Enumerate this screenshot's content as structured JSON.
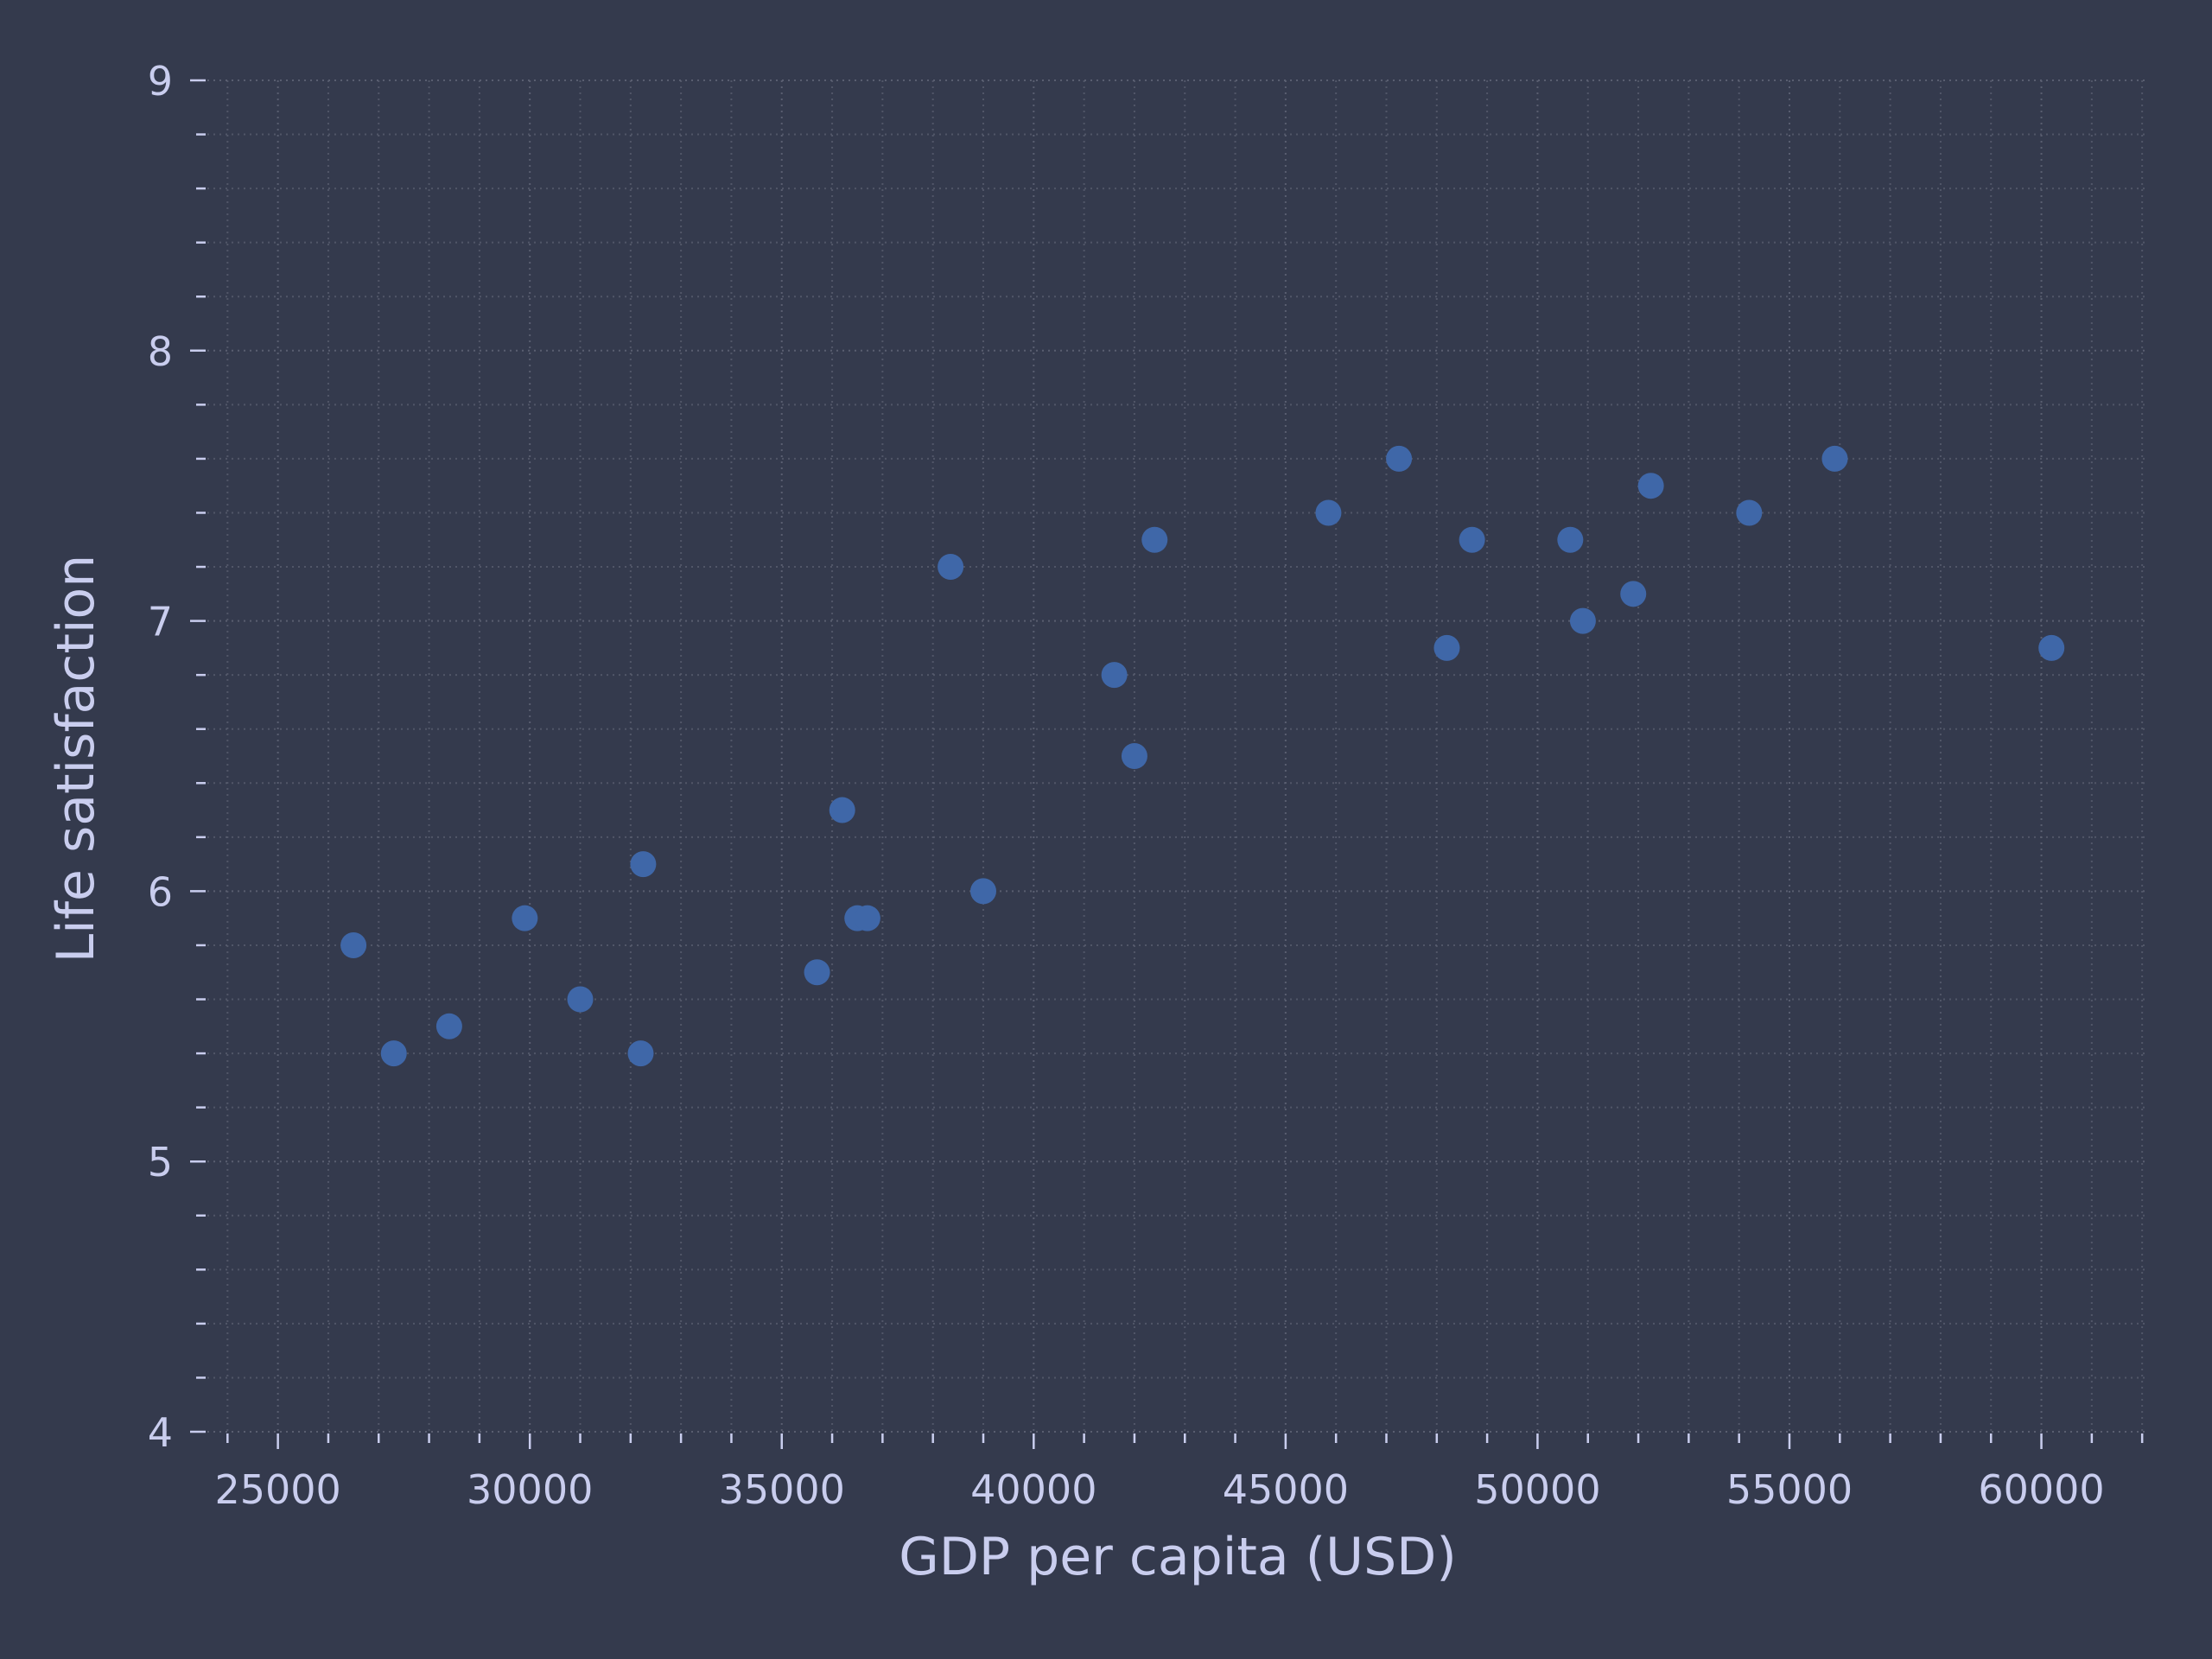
{
  "chart_data": {
    "type": "scatter",
    "title": "",
    "xlabel": "GDP per capita (USD)",
    "ylabel": "Life satisfaction",
    "xlim": [
      23600,
      62100
    ],
    "ylim": [
      4,
      9
    ],
    "x_ticks": [
      25000,
      30000,
      35000,
      40000,
      45000,
      50000,
      55000,
      60000
    ],
    "y_ticks": [
      4,
      5,
      6,
      7,
      8,
      9
    ],
    "x_minor_step": 1000,
    "y_minor_step": 0.2,
    "grid": true,
    "colors": {
      "background": "#343a4d",
      "point": "#3f67a8",
      "text": "#c9cdee",
      "grid": "#5b6072"
    },
    "points": [
      {
        "x": 26500,
        "y": 5.8
      },
      {
        "x": 27300,
        "y": 5.4
      },
      {
        "x": 28400,
        "y": 5.5
      },
      {
        "x": 29900,
        "y": 5.9
      },
      {
        "x": 31000,
        "y": 5.6
      },
      {
        "x": 32200,
        "y": 5.4
      },
      {
        "x": 32250,
        "y": 6.1
      },
      {
        "x": 35700,
        "y": 5.7
      },
      {
        "x": 36200,
        "y": 6.3
      },
      {
        "x": 36500,
        "y": 5.9
      },
      {
        "x": 36700,
        "y": 5.9
      },
      {
        "x": 38350,
        "y": 7.2
      },
      {
        "x": 39000,
        "y": 6.0
      },
      {
        "x": 41600,
        "y": 6.8
      },
      {
        "x": 42000,
        "y": 6.5
      },
      {
        "x": 42400,
        "y": 7.3
      },
      {
        "x": 45850,
        "y": 7.4
      },
      {
        "x": 47250,
        "y": 7.6
      },
      {
        "x": 48200,
        "y": 6.9
      },
      {
        "x": 48700,
        "y": 7.3
      },
      {
        "x": 50650,
        "y": 7.3
      },
      {
        "x": 50900,
        "y": 7.0
      },
      {
        "x": 51900,
        "y": 7.1
      },
      {
        "x": 52250,
        "y": 7.5
      },
      {
        "x": 54200,
        "y": 7.4
      },
      {
        "x": 55900,
        "y": 7.6
      },
      {
        "x": 60200,
        "y": 6.9
      }
    ]
  }
}
